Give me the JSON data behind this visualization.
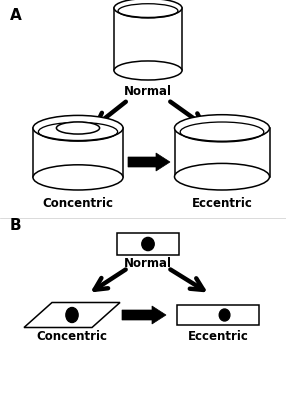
{
  "bg_color": "#ffffff",
  "label_A": "A",
  "label_B": "B",
  "label_normal_A": "Normal",
  "label_concentric_A": "Concentric",
  "label_eccentric_A": "Eccentric",
  "label_normal_B": "Normal",
  "label_concentric_B": "Concentric",
  "label_eccentric_B": "Eccentric",
  "font_size_labels": 8.5,
  "font_size_AB": 11,
  "ec": "#000000",
  "fc": "#ffffff",
  "arrow_lw": 3.2,
  "cup_lw": 1.1
}
